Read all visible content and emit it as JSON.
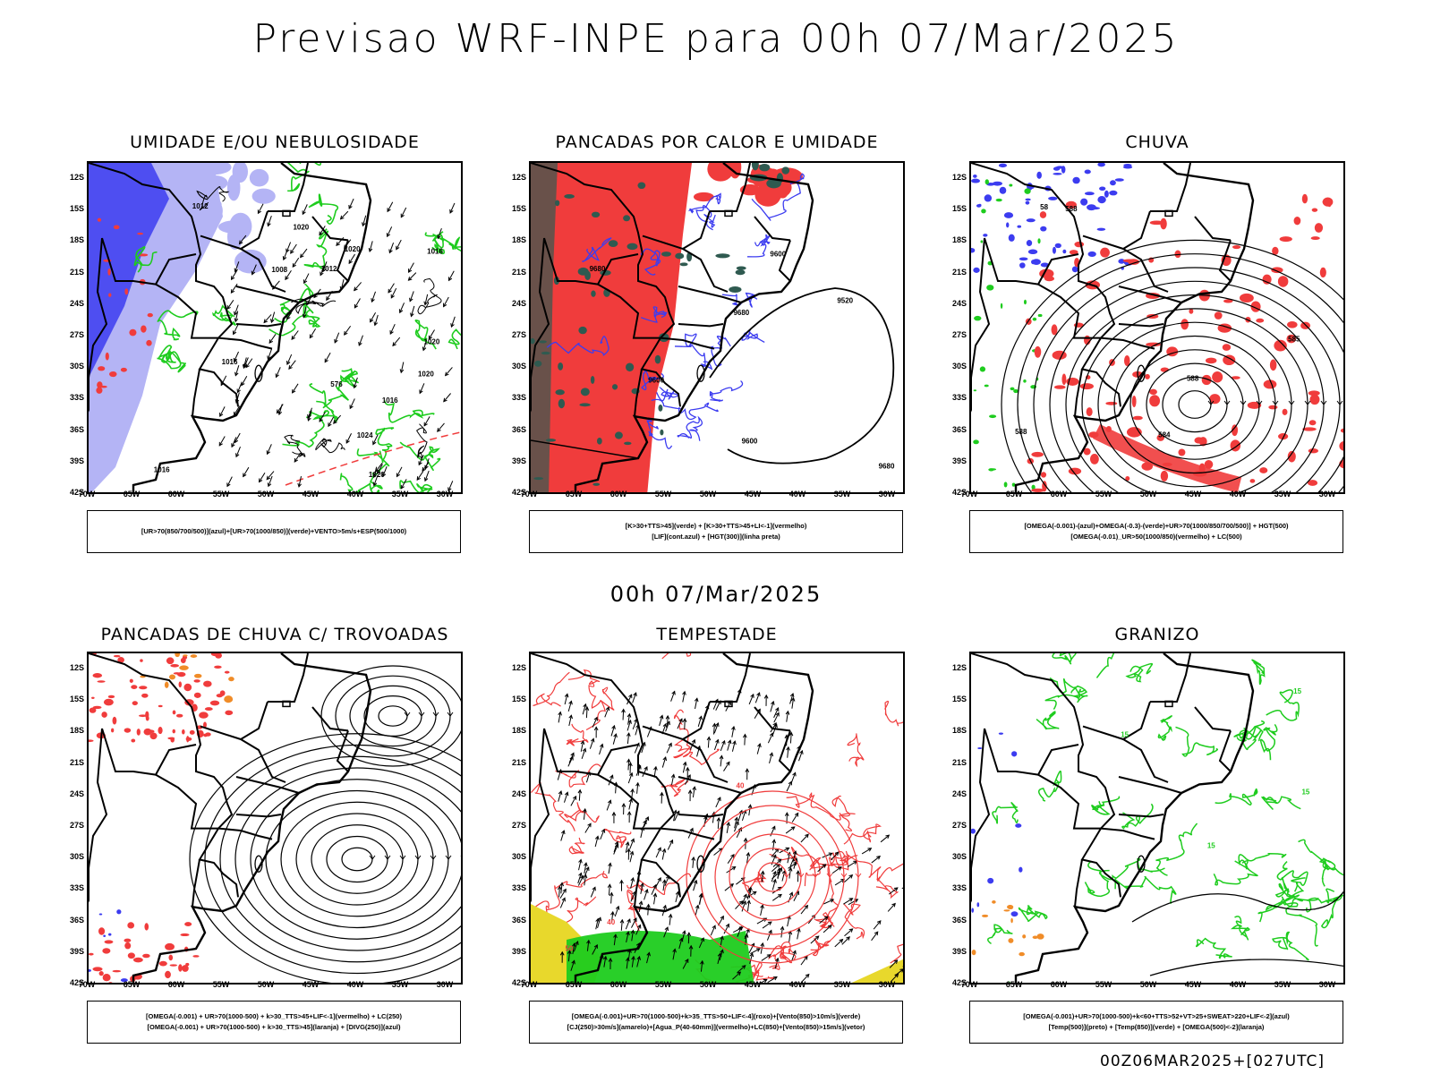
{
  "header": {
    "title": "Previsao WRF-INPE  para 00h 07/Mar/2025",
    "mid_title": "00h 07/Mar/2025",
    "footer": "00Z06MAR2025+[027UTC]"
  },
  "axes": {
    "lat_labels": [
      "12S",
      "15S",
      "18S",
      "21S",
      "24S",
      "27S",
      "30S",
      "33S",
      "36S",
      "39S",
      "42S"
    ],
    "lon_labels": [
      "70W",
      "65W",
      "60W",
      "55W",
      "50W",
      "45W",
      "40W",
      "35W",
      "30W"
    ]
  },
  "colors": {
    "blue": "#3c3cf0",
    "light_blue": "#b4b4f5",
    "green": "#1ecc1e",
    "red": "#f03c3c",
    "dark_green": "#2f5a50",
    "yellow": "#e8d82c",
    "orange": "#f08c28"
  },
  "panels": [
    {
      "title": "UMIDADE E/OU NEBULOSIDADE",
      "legend": [
        "[UR>70(850/700/500)](azul)+[UR>70(1000/850)](verde)+VENTO>5m/s+ESP(500/1000)"
      ],
      "contour_labels": [
        "1016",
        "1016",
        "1012",
        "1020",
        "1020",
        "1016",
        "1020",
        "1020",
        "1016",
        "1020",
        "1012",
        "1008",
        "1024",
        "576"
      ]
    },
    {
      "title": "PANCADAS POR CALOR E UMIDADE",
      "legend": [
        "[K>30+TTS>45](verde) + [K>30+TTS>45+LI<-1](vermelho)",
        "[LIF](cont.azul) + [HGT(300)](linha preta)"
      ],
      "contour_labels": [
        "9600",
        "9600",
        "9680",
        "9680",
        "9520",
        "9600",
        "9680"
      ]
    },
    {
      "title": "CHUVA",
      "legend": [
        "[OMEGA(-0.001)-(azul)+OMEGA(-0.3)-(verde)+UR>70(1000/850/700/500)] + HGT(500)",
        "[OMEGA(-0.01)_UR>50(1000/850)(vermelho) + LC(500)"
      ],
      "contour_labels": [
        "588",
        "588",
        "588",
        "585",
        "584",
        "58"
      ]
    },
    {
      "title": "PANCADAS DE CHUVA C/ TROVOADAS",
      "legend": [
        "[OMEGA(-0.001) + UR>70(1000-500) + k>30_TTS>45+LIF<-1](vermelho) + LC(250)",
        "[OMEGA(-0.001) + UR>70(1000-500) + k>30_TTS>45](laranja) + [DIVG(250)](azul)"
      ],
      "contour_labels": []
    },
    {
      "title": "TEMPESTADE",
      "legend": [
        "[OMEGA(-0.001)+UR>70(1000-500)+k>35_TTS>50+LIF<-4](roxo)+[Vento(850)>10m/s](verde)",
        "[CJ(250)>30m/s](amarelo)+[Agua_P(40-60mm)](vermelho)+LC(850)+[Vento(850)>15m/s](vetor)"
      ],
      "contour_labels": [
        "40",
        "40",
        "50"
      ]
    },
    {
      "title": "GRANIZO",
      "legend": [
        "[OMEGA(-0.001)+UR>70(1000-500)+k<60+TTS>52+VT>25+SWEAT>220+LIF<-2](azul)",
        "[Temp(500)](preto) + [Temp(850)](verde) + [OMEGA(500)<-2](laranja)"
      ],
      "contour_labels": [
        "15",
        "15",
        "15",
        "15"
      ]
    }
  ]
}
